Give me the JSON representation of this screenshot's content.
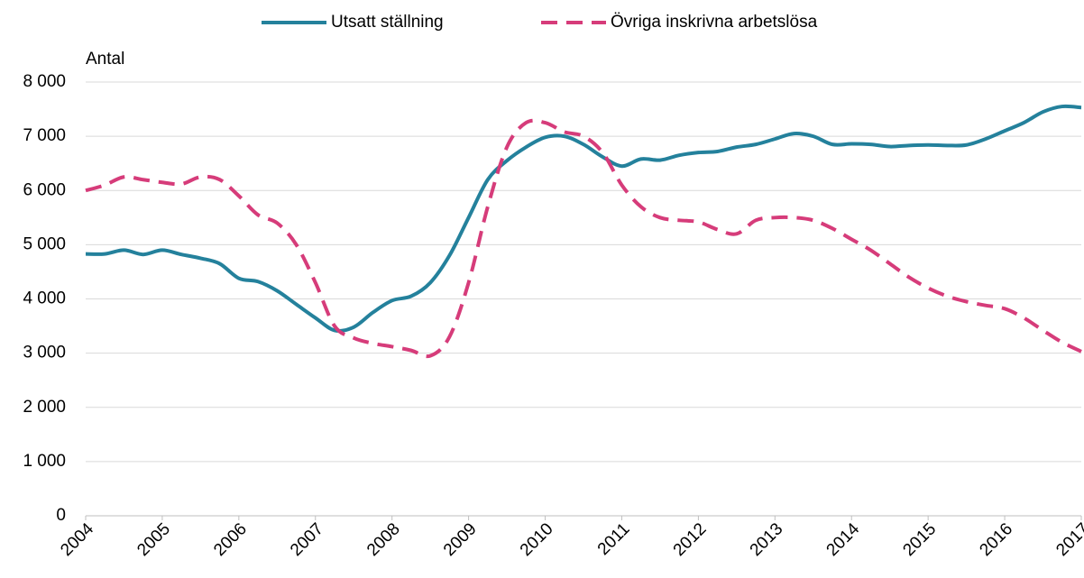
{
  "chart_data": {
    "type": "line",
    "ylabel": "Antal",
    "x": [
      2004,
      2004.25,
      2004.5,
      2004.75,
      2005,
      2005.25,
      2005.5,
      2005.75,
      2006,
      2006.25,
      2006.5,
      2006.75,
      2007,
      2007.25,
      2007.5,
      2007.75,
      2008,
      2008.25,
      2008.5,
      2008.75,
      2009,
      2009.25,
      2009.5,
      2009.75,
      2010,
      2010.25,
      2010.5,
      2010.75,
      2011,
      2011.25,
      2011.5,
      2011.75,
      2012,
      2012.25,
      2012.5,
      2012.75,
      2013,
      2013.25,
      2013.5,
      2013.75,
      2014,
      2014.25,
      2014.5,
      2014.75,
      2015,
      2015.25,
      2015.5,
      2015.75,
      2016,
      2016.25,
      2016.5,
      2016.75,
      2017
    ],
    "series": [
      {
        "name": "Utsatt ställning",
        "color": "#24819c",
        "dash": false,
        "values": [
          4830,
          4830,
          4900,
          4820,
          4900,
          4820,
          4750,
          4650,
          4380,
          4320,
          4150,
          3900,
          3650,
          3420,
          3480,
          3750,
          3970,
          4050,
          4300,
          4800,
          5500,
          6200,
          6550,
          6800,
          6980,
          7000,
          6850,
          6620,
          6450,
          6580,
          6560,
          6650,
          6700,
          6720,
          6800,
          6850,
          6950,
          7050,
          7000,
          6850,
          6860,
          6850,
          6810,
          6830,
          6840,
          6830,
          6840,
          6950,
          7100,
          7250,
          7450,
          7550,
          7530
        ]
      },
      {
        "name": "Övriga inskrivna arbetslösa",
        "color": "#d63c7a",
        "dash": true,
        "values": [
          6000,
          6100,
          6250,
          6200,
          6150,
          6120,
          6250,
          6200,
          5900,
          5550,
          5400,
          5000,
          4300,
          3500,
          3280,
          3180,
          3120,
          3050,
          2950,
          3300,
          4300,
          5700,
          6800,
          7250,
          7250,
          7080,
          7000,
          6700,
          6100,
          5700,
          5500,
          5450,
          5420,
          5280,
          5200,
          5450,
          5500,
          5500,
          5450,
          5300,
          5100,
          4900,
          4650,
          4400,
          4200,
          4050,
          3950,
          3880,
          3820,
          3650,
          3420,
          3200,
          3030
        ]
      }
    ],
    "xlim": [
      2004,
      2017
    ],
    "xticks": [
      2004,
      2005,
      2006,
      2007,
      2008,
      2009,
      2010,
      2011,
      2012,
      2013,
      2014,
      2015,
      2016,
      2017
    ],
    "ylim": [
      0,
      8000
    ],
    "yticks": [
      0,
      {
        "value": 1000,
        "label": "1 000"
      },
      {
        "value": 2000,
        "label": "2 000"
      },
      {
        "value": 3000,
        "label": "3 000"
      },
      {
        "value": 4000,
        "label": "4 000"
      },
      {
        "value": 5000,
        "label": "5 000"
      },
      {
        "value": 6000,
        "label": "6 000"
      },
      {
        "value": 7000,
        "label": "7 000"
      },
      {
        "value": 8000,
        "label": "8 000"
      }
    ],
    "grid": true,
    "legend": "top"
  }
}
